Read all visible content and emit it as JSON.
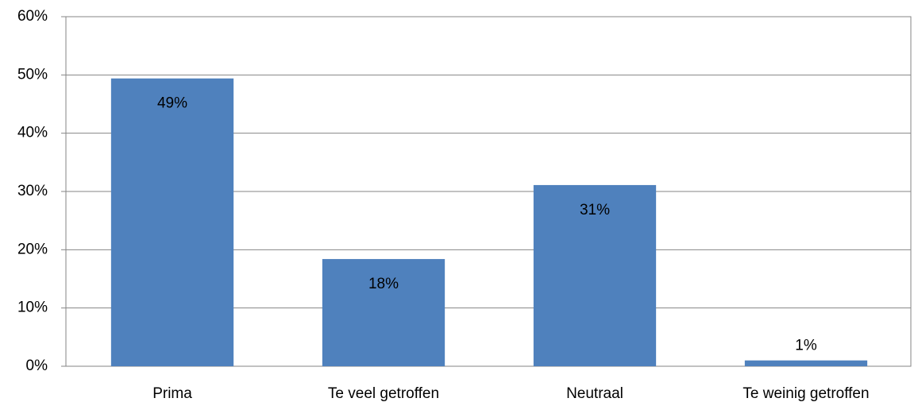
{
  "chart_data": {
    "type": "bar",
    "categories": [
      "Prima",
      "Te veel getroffen",
      "Neutraal",
      "Te weinig getroffen"
    ],
    "values": [
      49.4,
      18.4,
      31.1,
      1.0
    ],
    "value_labels": [
      "49%",
      "18%",
      "31%",
      "1%"
    ],
    "color": "#4f81bd",
    "ylim": [
      0,
      60
    ],
    "yticks": [
      {
        "value": 0,
        "label": "0%"
      },
      {
        "value": 10,
        "label": "10%"
      },
      {
        "value": 20,
        "label": "20%"
      },
      {
        "value": 30,
        "label": "30%"
      },
      {
        "value": 40,
        "label": "40%"
      },
      {
        "value": 50,
        "label": "50%"
      },
      {
        "value": 60,
        "label": "60%"
      }
    ],
    "grid": true
  }
}
